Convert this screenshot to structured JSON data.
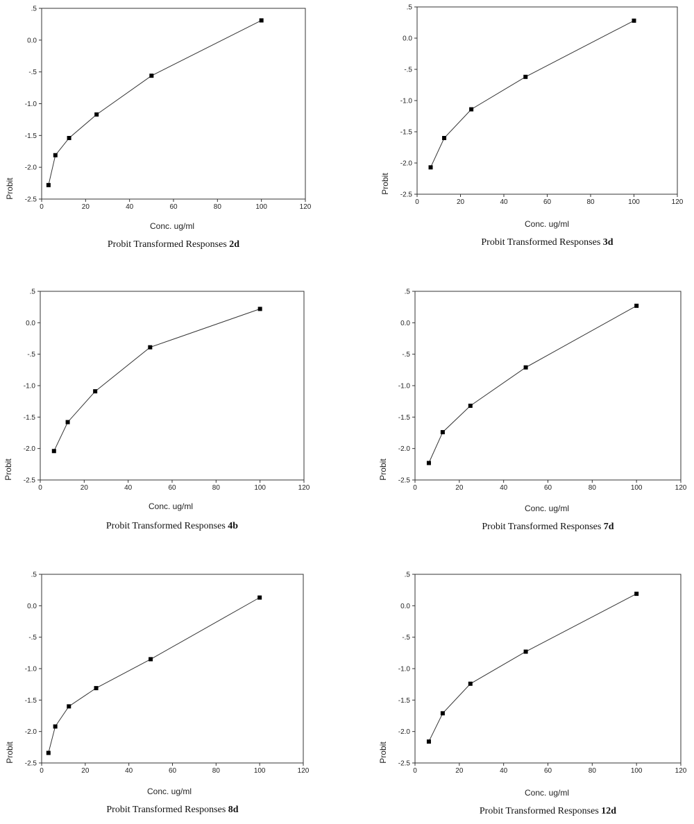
{
  "chart_data": [
    {
      "type": "line",
      "caption_prefix": "Probit Transformed Responses",
      "caption_id": "2d",
      "xlabel": "Conc. ug/ml",
      "ylabel": "Probit",
      "xlim": [
        0,
        120
      ],
      "ylim": [
        -2.5,
        0.5
      ],
      "x_ticks": [
        0,
        20,
        40,
        60,
        80,
        100,
        120
      ],
      "y_ticks": [
        0.5,
        0.0,
        -0.5,
        -1.0,
        -1.5,
        -2.0,
        -2.5
      ],
      "y_tick_labels": [
        ".5",
        "0.0",
        "-.5",
        "-1.0",
        "-1.5",
        "-2.0",
        "-2.5"
      ],
      "x": [
        3.125,
        6.25,
        12.5,
        25,
        50,
        100
      ],
      "y": [
        -2.28,
        -1.81,
        -1.54,
        -1.17,
        -0.56,
        0.31
      ]
    },
    {
      "type": "line",
      "caption_prefix": "Probit Transformed Responses",
      "caption_id": "3d",
      "xlabel": "Conc. ug/ml",
      "ylabel": "Probit",
      "xlim": [
        0,
        120
      ],
      "ylim": [
        -2.5,
        0.5
      ],
      "x_ticks": [
        0,
        20,
        40,
        60,
        80,
        100,
        120
      ],
      "y_ticks": [
        0.5,
        0.0,
        -0.5,
        -1.0,
        -1.5,
        -2.0,
        -2.5
      ],
      "y_tick_labels": [
        ".5",
        "0.0",
        "-.5",
        "-1.0",
        "-1.5",
        "-2.0",
        "-2.5"
      ],
      "x": [
        6.25,
        12.5,
        25,
        50,
        100
      ],
      "y": [
        -2.07,
        -1.6,
        -1.14,
        -0.62,
        0.28
      ]
    },
    {
      "type": "line",
      "caption_prefix": "Probit Transformed Responses",
      "caption_id": "4b",
      "xlabel": "Conc. ug/ml",
      "ylabel": "Probit",
      "xlim": [
        0,
        120
      ],
      "ylim": [
        -2.5,
        0.5
      ],
      "x_ticks": [
        0,
        20,
        40,
        60,
        80,
        100,
        120
      ],
      "y_ticks": [
        0.5,
        0.0,
        -0.5,
        -1.0,
        -1.5,
        -2.0,
        -2.5
      ],
      "y_tick_labels": [
        ".5",
        "0.0",
        "-.5",
        "-1.0",
        "-1.5",
        "-2.0",
        "-2.5"
      ],
      "x": [
        6.25,
        12.5,
        25,
        50,
        100
      ],
      "y": [
        -2.04,
        -1.58,
        -1.09,
        -0.39,
        0.22
      ]
    },
    {
      "type": "line",
      "caption_prefix": "Probit Transformed Responses",
      "caption_id": "7d",
      "xlabel": "Conc. ug/ml",
      "ylabel": "Probit",
      "xlim": [
        0,
        120
      ],
      "ylim": [
        -2.5,
        0.5
      ],
      "x_ticks": [
        0,
        20,
        40,
        60,
        80,
        100,
        120
      ],
      "y_ticks": [
        0.5,
        0.0,
        -0.5,
        -1.0,
        -1.5,
        -2.0,
        -2.5
      ],
      "y_tick_labels": [
        ".5",
        "0.0",
        "-.5",
        "-1.0",
        "-1.5",
        "-2.0",
        "-2.5"
      ],
      "x": [
        6.25,
        12.5,
        25,
        50,
        100
      ],
      "y": [
        -2.23,
        -1.74,
        -1.32,
        -0.71,
        0.27
      ]
    },
    {
      "type": "line",
      "caption_prefix": "Probit Transformed Responses",
      "caption_id": "8d",
      "xlabel": "Conc. ug/ml",
      "ylabel": "Probit",
      "xlim": [
        0,
        120
      ],
      "ylim": [
        -2.5,
        0.5
      ],
      "x_ticks": [
        0,
        20,
        40,
        60,
        80,
        100,
        120
      ],
      "y_ticks": [
        0.5,
        0.0,
        -0.5,
        -1.0,
        -1.5,
        -2.0,
        -2.5
      ],
      "y_tick_labels": [
        ".5",
        "0.0",
        "-.5",
        "-1.0",
        "-1.5",
        "-2.0",
        "-2.5"
      ],
      "x": [
        3.125,
        6.25,
        12.5,
        25,
        50,
        100
      ],
      "y": [
        -2.34,
        -1.92,
        -1.6,
        -1.31,
        -0.85,
        0.13
      ]
    },
    {
      "type": "line",
      "caption_prefix": "Probit Transformed Responses",
      "caption_id": "12d",
      "xlabel": "Conc. ug/ml",
      "ylabel": "Probit",
      "xlim": [
        0,
        120
      ],
      "ylim": [
        -2.5,
        0.5
      ],
      "x_ticks": [
        0,
        20,
        40,
        60,
        80,
        100,
        120
      ],
      "y_ticks": [
        0.5,
        0.0,
        -0.5,
        -1.0,
        -1.5,
        -2.0,
        -2.5
      ],
      "y_tick_labels": [
        ".5",
        "0.0",
        "-.5",
        "-1.0",
        "-1.5",
        "-2.0",
        "-2.5"
      ],
      "x": [
        6.25,
        12.5,
        25,
        50,
        100
      ],
      "y": [
        -2.16,
        -1.71,
        -1.24,
        -0.73,
        0.19
      ]
    }
  ]
}
